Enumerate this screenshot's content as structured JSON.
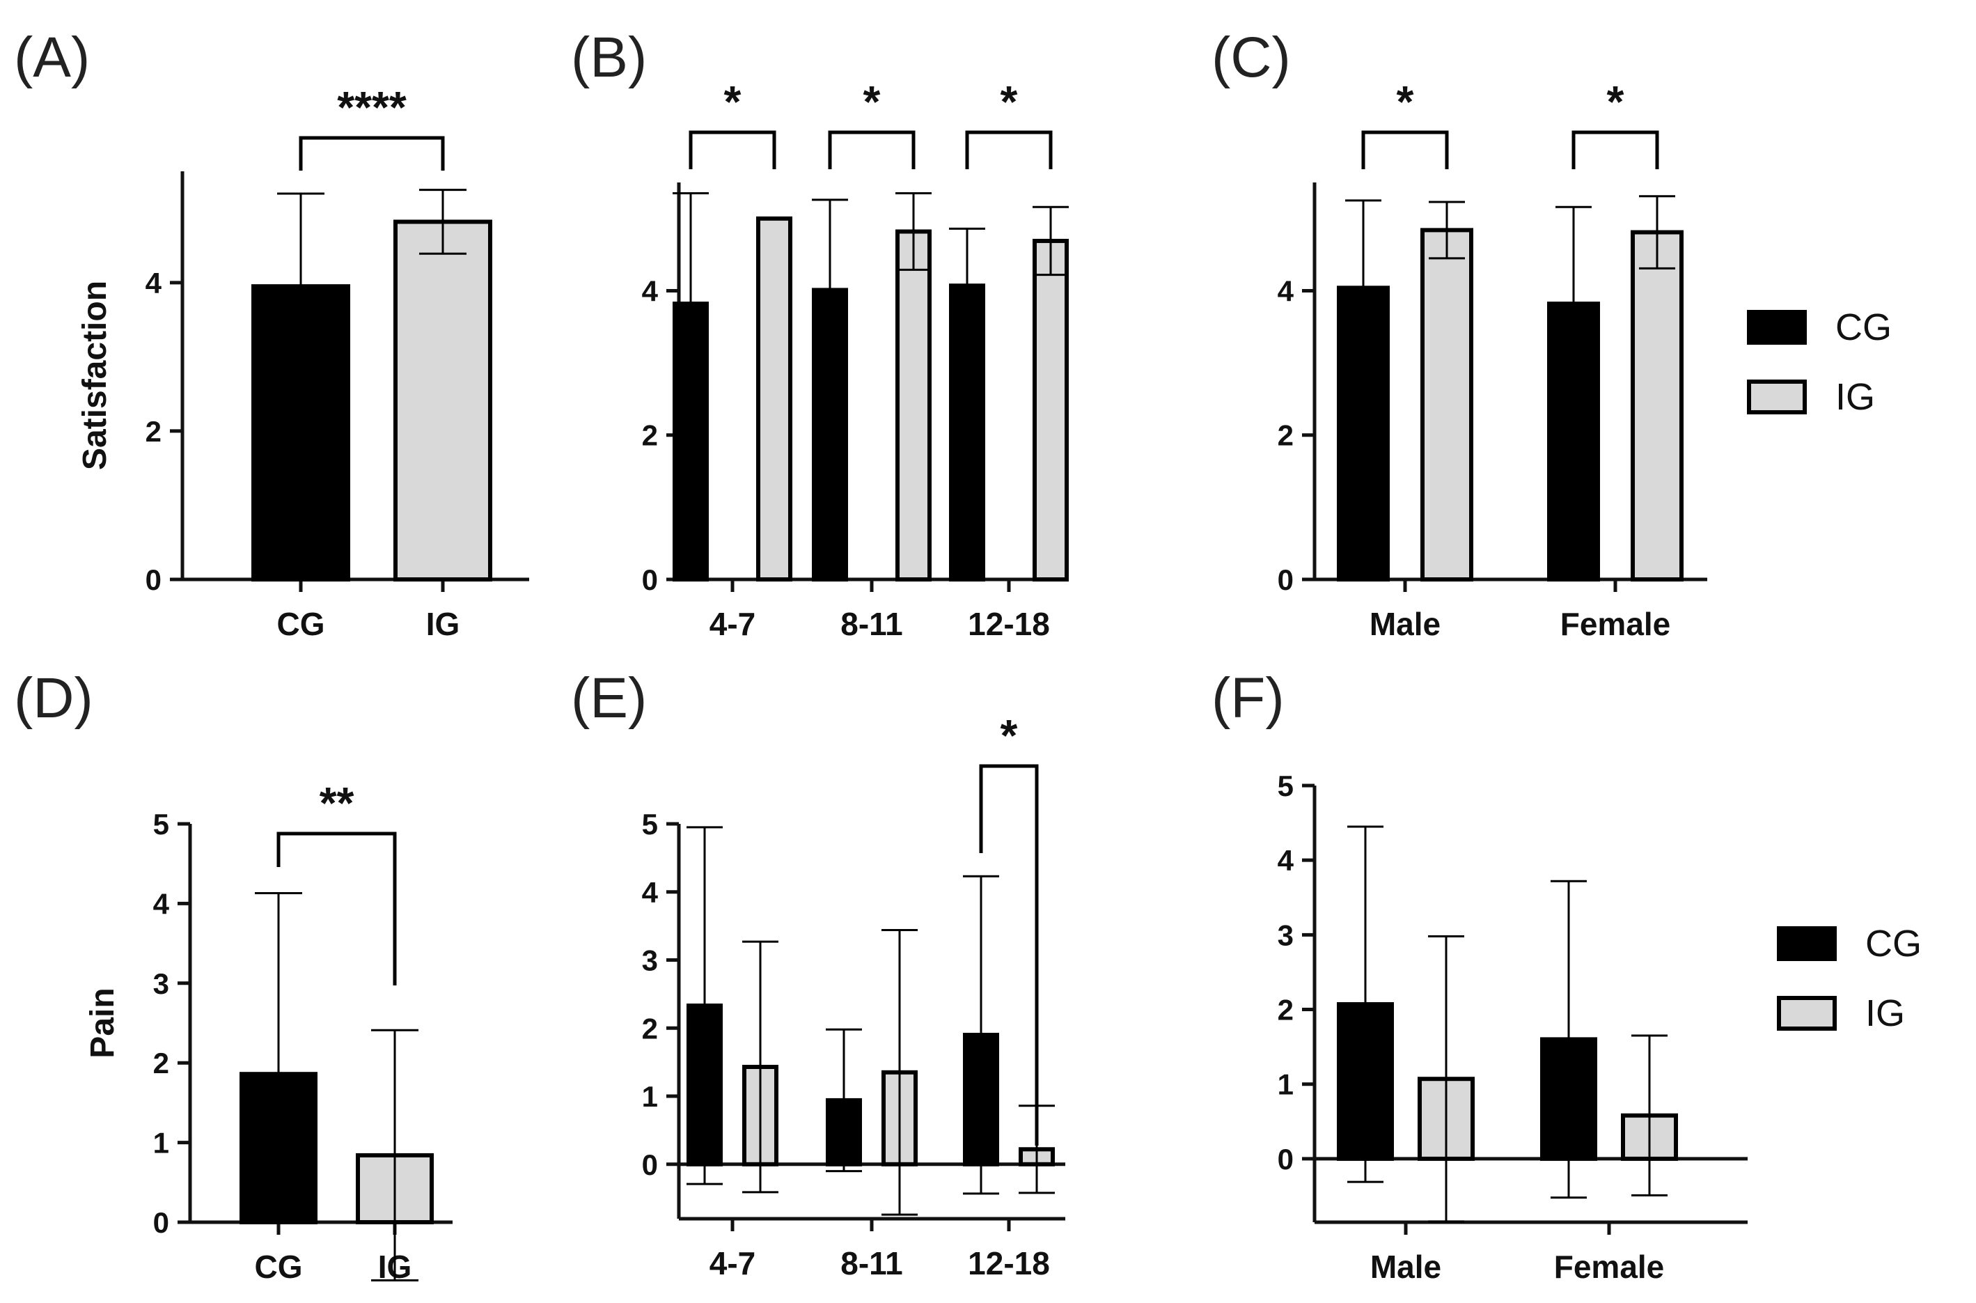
{
  "chart_data": [
    {
      "panel": "(A)",
      "type": "bar",
      "ylabel": "Satisfaction",
      "ylim": [
        0,
        5.5
      ],
      "yticks": [
        0,
        2,
        4
      ],
      "categories": [
        "CG",
        "IG"
      ],
      "series": [
        {
          "values": [
            3.95,
            4.82
          ],
          "errors": [
            1.25,
            0.43
          ]
        }
      ],
      "significance": [
        {
          "from": 0,
          "to": 1,
          "label": "****"
        }
      ]
    },
    {
      "panel": "(B)",
      "type": "bar",
      "ylabel": "",
      "ylim": [
        0,
        5.5
      ],
      "yticks": [
        0,
        2,
        4
      ],
      "categories": [
        "4-7",
        "8-11",
        "12-18"
      ],
      "series": [
        {
          "name": "CG",
          "values": [
            3.82,
            4.01,
            4.07
          ],
          "errors": [
            1.53,
            1.25,
            0.79
          ]
        },
        {
          "name": "IG",
          "values": [
            5.0,
            4.82,
            4.69
          ],
          "errors": [
            0.0,
            0.53,
            0.47
          ]
        }
      ],
      "significance": [
        {
          "category": 0,
          "label": "*"
        },
        {
          "category": 1,
          "label": "*"
        },
        {
          "category": 2,
          "label": "*"
        }
      ]
    },
    {
      "panel": "(C)",
      "type": "bar",
      "ylabel": "",
      "ylim": [
        0,
        5.5
      ],
      "yticks": [
        0,
        2,
        4
      ],
      "categories": [
        "Male",
        "Female"
      ],
      "series": [
        {
          "name": "CG",
          "values": [
            4.04,
            3.82
          ],
          "errors": [
            1.21,
            1.34
          ]
        },
        {
          "name": "IG",
          "values": [
            4.84,
            4.81
          ],
          "errors": [
            0.39,
            0.5
          ]
        }
      ],
      "significance": [
        {
          "category": 0,
          "label": "*"
        },
        {
          "category": 1,
          "label": "*"
        }
      ]
    },
    {
      "panel": "(D)",
      "type": "bar",
      "ylabel": "Pain",
      "ylim": [
        0,
        5
      ],
      "yticks": [
        0,
        1,
        2,
        3,
        4,
        5
      ],
      "categories": [
        "CG",
        "IG"
      ],
      "series": [
        {
          "values": [
            1.86,
            0.84
          ],
          "errors": [
            2.27,
            1.57
          ]
        }
      ],
      "significance": [
        {
          "from": 0,
          "to": 1,
          "label": "**"
        }
      ]
    },
    {
      "panel": "(E)",
      "type": "bar",
      "ylabel": "",
      "ylim": [
        -0.8,
        5
      ],
      "yticks": [
        0,
        1,
        2,
        3,
        4,
        5
      ],
      "categories": [
        "4-7",
        "8-11",
        "12-18"
      ],
      "series": [
        {
          "name": "CG",
          "values": [
            2.33,
            0.94,
            1.9
          ],
          "errors": [
            2.62,
            1.04,
            2.33
          ]
        },
        {
          "name": "IG",
          "values": [
            1.43,
            1.35,
            0.22
          ],
          "errors": [
            1.84,
            2.09,
            0.64
          ]
        }
      ],
      "significance": [
        {
          "category": 2,
          "label": "*"
        }
      ]
    },
    {
      "panel": "(F)",
      "type": "bar",
      "ylabel": "",
      "ylim": [
        -0.85,
        5
      ],
      "yticks": [
        0,
        1,
        2,
        3,
        4,
        5
      ],
      "categories": [
        "Male",
        "Female"
      ],
      "series": [
        {
          "name": "CG",
          "values": [
            2.07,
            1.6
          ],
          "errors": [
            2.38,
            2.12
          ]
        },
        {
          "name": "IG",
          "values": [
            1.07,
            0.58
          ],
          "errors": [
            1.91,
            1.07
          ]
        }
      ],
      "significance": []
    }
  ],
  "legend": {
    "items": [
      {
        "label": "CG",
        "color": "#000000"
      },
      {
        "label": "IG",
        "color": "#d9d9d9"
      }
    ]
  },
  "colors": {
    "cg": "#000000",
    "ig": "#d9d9d9",
    "axis": "#111111"
  }
}
